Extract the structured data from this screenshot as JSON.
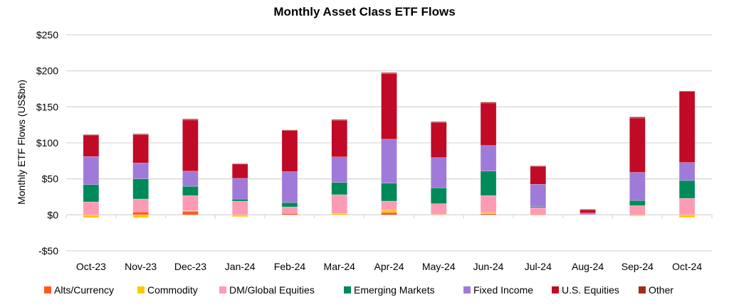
{
  "chart_data": {
    "type": "bar",
    "stacked": true,
    "title": "Monthly Asset Class ETF Flows",
    "xlabel": "",
    "ylabel": "Monthly ETF Flows (US$bn)",
    "ylim": [
      -50,
      250
    ],
    "yticks": [
      -50,
      0,
      50,
      100,
      150,
      200,
      250
    ],
    "ytick_labels": [
      "-$50",
      "$0",
      "$50",
      "$100",
      "$150",
      "$200",
      "$250"
    ],
    "grid": true,
    "legend_position": "bottom",
    "categories": [
      "Oct-23",
      "Nov-23",
      "Dec-23",
      "Jan-24",
      "Feb-24",
      "Mar-24",
      "Apr-24",
      "May-24",
      "Jun-24",
      "Jul-24",
      "Aug-24",
      "Sep-24",
      "Oct-24"
    ],
    "series": [
      {
        "name": "Alts/Currency",
        "color": "#ff5a1f",
        "values": [
          0,
          4,
          5,
          0,
          2,
          0,
          3.3,
          0,
          1.6,
          0,
          0,
          0,
          0
        ]
      },
      {
        "name": "Commodity",
        "color": "#ffc800",
        "values": [
          -4,
          -4,
          0.7,
          -2.5,
          0,
          2,
          3.3,
          0.5,
          1.7,
          -1,
          0,
          -1.5,
          -3.6
        ]
      },
      {
        "name": "DM/Global Equities",
        "color": "#fd9bb4",
        "values": [
          18,
          18,
          21,
          19,
          9,
          26,
          12.5,
          15,
          23.5,
          10,
          0.5,
          12.8,
          23
        ]
      },
      {
        "name": "Emerging Markets",
        "color": "#008a5a",
        "values": [
          24,
          28,
          13,
          3,
          6,
          17,
          25,
          22,
          34,
          1.5,
          0,
          7.2,
          24.7
        ]
      },
      {
        "name": "Fixed Income",
        "color": "#a07ad8",
        "values": [
          39,
          22,
          21,
          28.7,
          43,
          35.5,
          61,
          42,
          35.5,
          31,
          2.1,
          39,
          25
        ]
      },
      {
        "name": "U.S. Equities",
        "color": "#c00a26",
        "values": [
          30,
          39.5,
          71,
          20,
          57,
          51,
          91,
          49,
          59,
          25,
          4.6,
          75.5,
          99
        ]
      },
      {
        "name": "Other",
        "color": "#a52a1a",
        "values": [
          0.5,
          1,
          1.5,
          0.5,
          1,
          1,
          1.5,
          1,
          1.3,
          0.6,
          0.6,
          1.5,
          0
        ]
      }
    ]
  }
}
